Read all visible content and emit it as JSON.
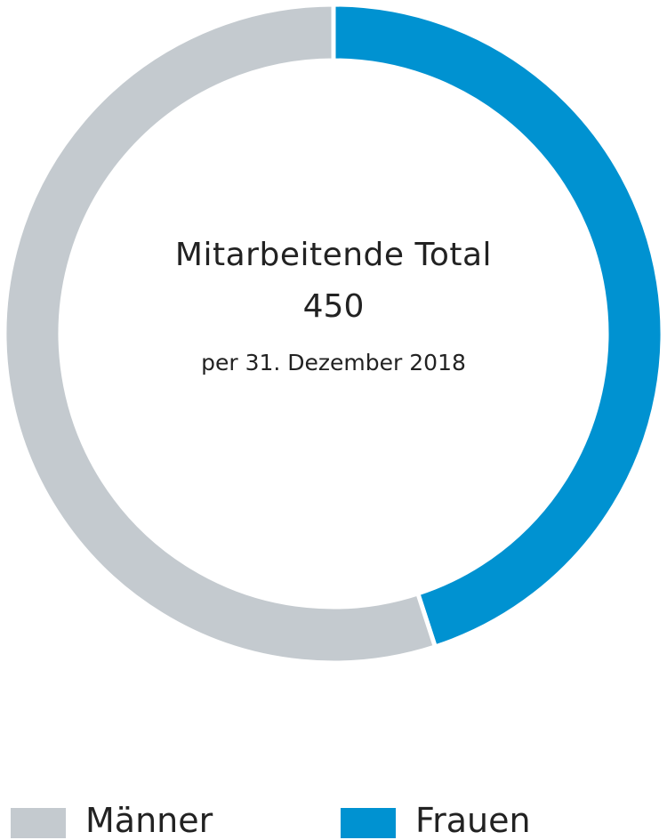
{
  "chart_data": {
    "type": "pie",
    "variant": "donut",
    "center": {
      "title": "Mitarbeitende Total",
      "total": "450",
      "subtitle": "per 31. Dezember 2018"
    },
    "series": [
      {
        "name": "Frauen",
        "value": 0.45,
        "color": "#0092d1"
      },
      {
        "name": "Männer",
        "value": 0.55,
        "color": "#c4cacf"
      }
    ],
    "legend": {
      "placement": "bottom",
      "items": [
        {
          "label": "Männer",
          "color": "#c4cacf"
        },
        {
          "label": "Frauen",
          "color": "#0092d1"
        }
      ]
    }
  }
}
